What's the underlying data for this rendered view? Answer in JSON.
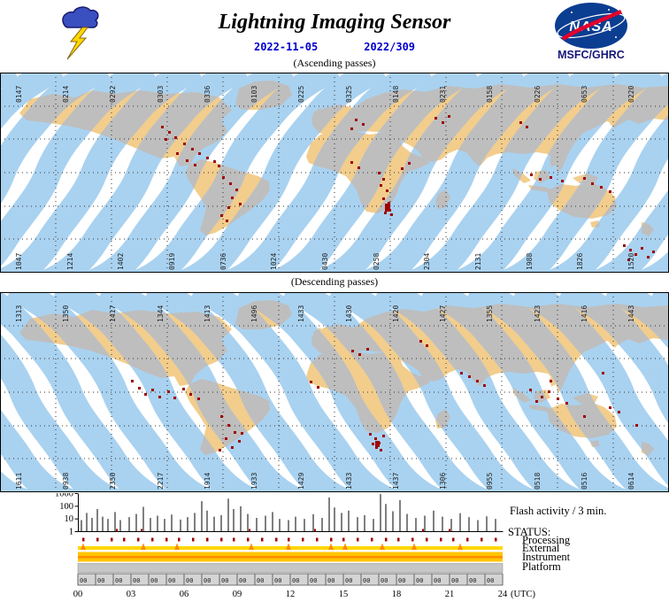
{
  "header": {
    "title": "Lightning Imaging Sensor",
    "date": "2022-11-05",
    "doy": "2022/309",
    "logo_text": "NASA",
    "agency": "MSFC/GHRC"
  },
  "colors": {
    "swath_ocean": "#A9D2F0",
    "swath_land": "#BEBEBE",
    "land": "#F2CD8C",
    "flash": "#A00000",
    "date_text": "#0000CD",
    "nasa_blue": "#0B3D91",
    "nasa_red": "#E4002B",
    "status_yellow": "#FFD800",
    "status_gold": "#FFC400",
    "status_orange": "#FF8C00",
    "status_gray": "#C6C6C6"
  },
  "maps": {
    "ascending": {
      "label": "(Ascending passes)",
      "top_orbits": [
        "0147",
        "0214",
        "0292",
        "0303",
        "0336",
        "0103",
        "0225",
        "0325",
        "0148",
        "0231",
        "0158",
        "0226",
        "0653",
        "0220"
      ],
      "bottom_orbits": [
        "1047",
        "1214",
        "1402",
        "0919",
        "0736",
        "1024",
        "0430",
        "0258",
        "2304",
        "2131",
        "1988",
        "1826",
        "1520"
      ],
      "flashes": [
        [
          182,
          60
        ],
        [
          190,
          66
        ],
        [
          186,
          74
        ],
        [
          197,
          72
        ],
        [
          207,
          79
        ],
        [
          216,
          85
        ],
        [
          224,
          90
        ],
        [
          233,
          95
        ],
        [
          241,
          99
        ],
        [
          199,
          90
        ],
        [
          246,
          104
        ],
        [
          210,
          98
        ],
        [
          219,
          103
        ],
        [
          251,
          117
        ],
        [
          259,
          124
        ],
        [
          266,
          131
        ],
        [
          261,
          140
        ],
        [
          270,
          147
        ],
        [
          257,
          151
        ],
        [
          249,
          160
        ],
        [
          255,
          166
        ],
        [
          396,
          100
        ],
        [
          404,
          106
        ],
        [
          427,
          112
        ],
        [
          432,
          119
        ],
        [
          429,
          126
        ],
        [
          436,
          132
        ],
        [
          432,
          141
        ],
        [
          438,
          146
        ],
        [
          436,
          149
        ],
        [
          439,
          154
        ],
        [
          434,
          157
        ],
        [
          441,
          159
        ],
        [
          435,
          148,
          6,
          9
        ],
        [
          453,
          107
        ],
        [
          461,
          101
        ],
        [
          401,
          52
        ],
        [
          409,
          57
        ],
        [
          396,
          62
        ],
        [
          491,
          50
        ],
        [
          499,
          55
        ],
        [
          506,
          48
        ],
        [
          587,
          55
        ],
        [
          594,
          60
        ],
        [
          599,
          114
        ],
        [
          609,
          119
        ],
        [
          621,
          117
        ],
        [
          634,
          121
        ],
        [
          659,
          118
        ],
        [
          668,
          124
        ],
        [
          678,
          128
        ],
        [
          688,
          133
        ],
        [
          704,
          194
        ],
        [
          711,
          199
        ],
        [
          717,
          204
        ],
        [
          724,
          197
        ],
        [
          731,
          207
        ],
        [
          709,
          210
        ],
        [
          737,
          201
        ]
      ]
    },
    "descending": {
      "label": "(Descending passes)",
      "top_orbits": [
        "1313",
        "1350",
        "1417",
        "1344",
        "1413",
        "1496",
        "1433",
        "1430",
        "1420",
        "1427",
        "1355",
        "1423",
        "1416",
        "1443"
      ],
      "bottom_orbits": [
        "1611",
        "0938",
        "2350",
        "2217",
        "1914",
        "1933",
        "1429",
        "1433",
        "1437",
        "1306",
        "0955",
        "0518",
        "0516",
        "0614"
      ],
      "flashes": [
        [
          148,
          99
        ],
        [
          156,
          107
        ],
        [
          163,
          114
        ],
        [
          171,
          109
        ],
        [
          179,
          117
        ],
        [
          189,
          111
        ],
        [
          196,
          118
        ],
        [
          206,
          108
        ],
        [
          214,
          114
        ],
        [
          223,
          119
        ],
        [
          249,
          139
        ],
        [
          257,
          149
        ],
        [
          264,
          157
        ],
        [
          254,
          164
        ],
        [
          269,
          167
        ],
        [
          261,
          174
        ],
        [
          247,
          177
        ],
        [
          272,
          158
        ],
        [
          397,
          65
        ],
        [
          405,
          69
        ],
        [
          414,
          63
        ],
        [
          350,
          100
        ],
        [
          358,
          106
        ],
        [
          417,
          159
        ],
        [
          423,
          164
        ],
        [
          427,
          169
        ],
        [
          432,
          161
        ],
        [
          424,
          174
        ],
        [
          429,
          177
        ],
        [
          420,
          170
        ],
        [
          424,
          168,
          5,
          7
        ],
        [
          474,
          54
        ],
        [
          481,
          59
        ],
        [
          529,
          94
        ],
        [
          538,
          99
        ],
        [
          546,
          104
        ],
        [
          520,
          90
        ],
        [
          598,
          109
        ],
        [
          611,
          117
        ],
        [
          619,
          111
        ],
        [
          629,
          119
        ],
        [
          639,
          124
        ],
        [
          605,
          122
        ],
        [
          621,
          99
        ],
        [
          688,
          129
        ],
        [
          698,
          134
        ],
        [
          659,
          139
        ],
        [
          718,
          149
        ],
        [
          680,
          90
        ]
      ]
    }
  },
  "chart_data": {
    "type": "bar",
    "title": "Flash activity / 3 min.",
    "y_scale": "log",
    "ylim": [
      1,
      1000
    ],
    "yticks": [
      1000,
      100,
      10,
      1
    ],
    "x_range_hours": [
      0,
      24
    ],
    "x_tick_labels": [
      "00",
      "03",
      "06",
      "09",
      "12",
      "15",
      "18",
      "21",
      "24"
    ],
    "x_axis_suffix": "(UTC)",
    "points": [
      [
        0.2,
        8
      ],
      [
        0.5,
        30
      ],
      [
        0.8,
        12
      ],
      [
        1.1,
        60
      ],
      [
        1.4,
        15
      ],
      [
        1.7,
        10
      ],
      [
        2.1,
        35
      ],
      [
        2.4,
        8
      ],
      [
        2.9,
        14
      ],
      [
        3.3,
        25
      ],
      [
        3.7,
        90
      ],
      [
        4.1,
        12
      ],
      [
        4.5,
        18
      ],
      [
        4.9,
        10
      ],
      [
        5.3,
        22
      ],
      [
        5.8,
        9
      ],
      [
        6.2,
        14
      ],
      [
        6.6,
        30
      ],
      [
        7.0,
        250
      ],
      [
        7.3,
        45
      ],
      [
        7.7,
        15
      ],
      [
        8.1,
        20
      ],
      [
        8.5,
        400
      ],
      [
        8.8,
        60
      ],
      [
        9.2,
        100
      ],
      [
        9.6,
        25
      ],
      [
        10.1,
        12
      ],
      [
        10.6,
        18
      ],
      [
        11.0,
        35
      ],
      [
        11.4,
        10
      ],
      [
        11.9,
        8
      ],
      [
        12.3,
        15
      ],
      [
        12.8,
        10
      ],
      [
        13.3,
        24
      ],
      [
        13.8,
        12
      ],
      [
        14.2,
        500
      ],
      [
        14.5,
        80
      ],
      [
        14.9,
        30
      ],
      [
        15.3,
        45
      ],
      [
        15.8,
        14
      ],
      [
        16.2,
        20
      ],
      [
        16.7,
        10
      ],
      [
        17.1,
        900
      ],
      [
        17.4,
        150
      ],
      [
        17.8,
        40
      ],
      [
        18.2,
        300
      ],
      [
        18.6,
        25
      ],
      [
        19.1,
        12
      ],
      [
        19.6,
        18
      ],
      [
        20.1,
        45
      ],
      [
        20.6,
        15
      ],
      [
        21.1,
        10
      ],
      [
        21.6,
        28
      ],
      [
        22.1,
        14
      ],
      [
        22.6,
        8
      ],
      [
        23.1,
        16
      ],
      [
        23.6,
        10
      ]
    ],
    "baseline_marks_hours": [
      2.2,
      3.6,
      9.7,
      13.4,
      19.5,
      21.0
    ]
  },
  "status": {
    "label": "STATUS:",
    "rows": [
      "Processing",
      "External",
      "Instrument",
      "Platform"
    ],
    "processing_marks_hours": [
      0.3,
      1.1,
      1.9,
      2.6,
      3.4,
      4.2,
      5.0,
      5.7,
      6.5,
      7.3,
      8.1,
      8.8,
      9.6,
      10.4,
      11.2,
      11.9,
      12.7,
      13.5,
      14.3,
      15.0,
      15.8,
      16.6,
      17.4,
      18.1,
      18.9,
      19.7,
      20.5,
      21.2,
      22.0,
      22.8,
      23.6
    ],
    "external_spikes_hours": [
      0.3,
      3.7,
      5.6,
      9.8,
      11.9,
      14.3,
      15.1,
      17.2,
      19.0,
      21.6
    ]
  },
  "timebar": {
    "minute_label": "00",
    "hours": [
      "00",
      "03",
      "06",
      "09",
      "12",
      "15",
      "18",
      "21",
      "24"
    ],
    "suffix": "(UTC)"
  }
}
